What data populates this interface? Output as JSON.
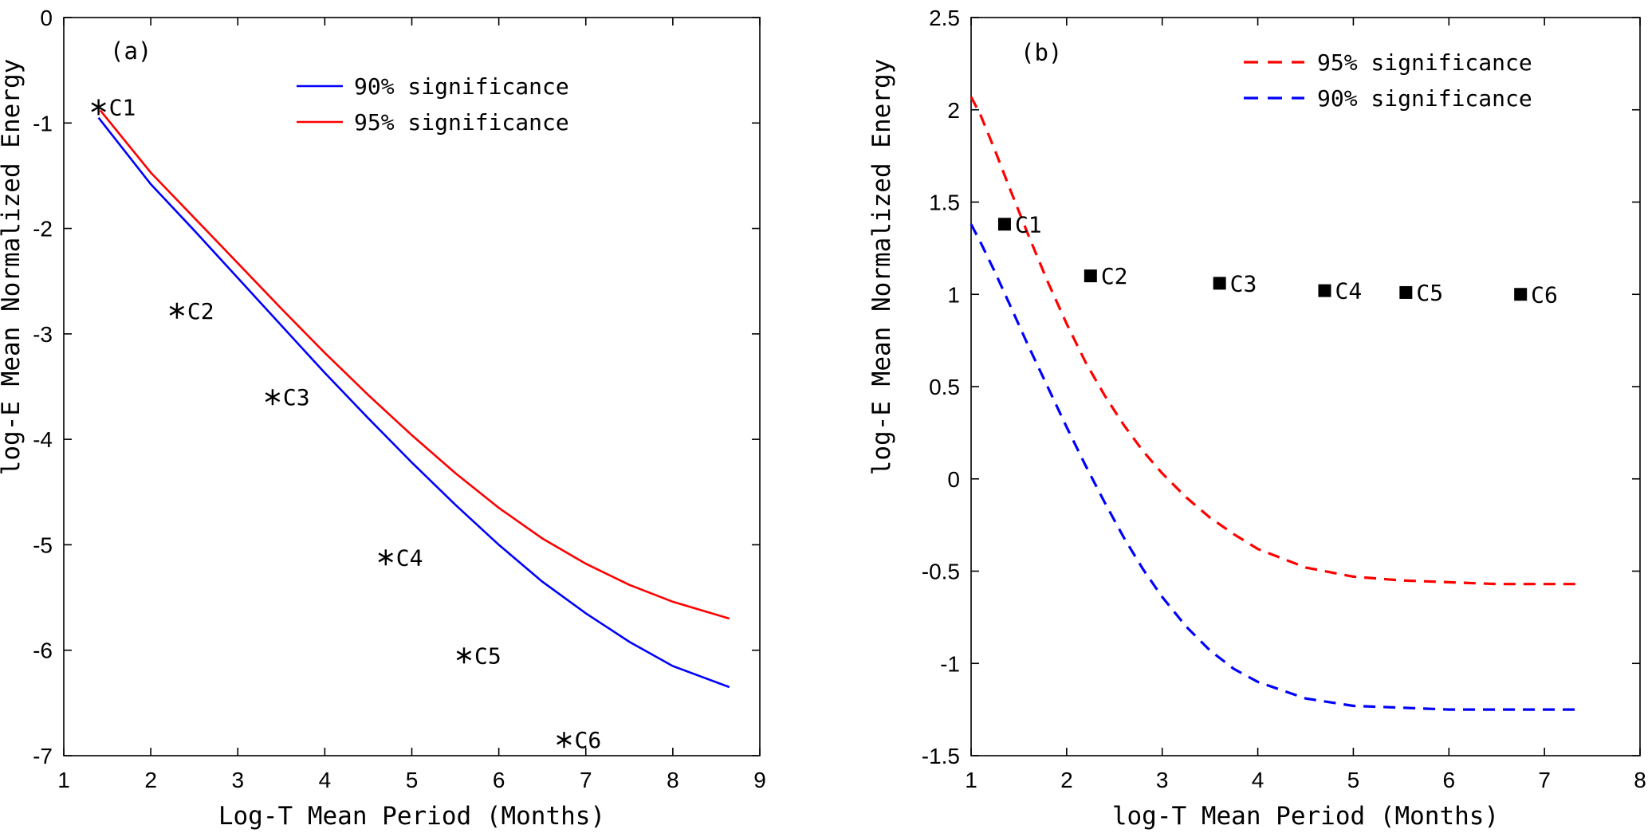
{
  "figure": {
    "background": "#ffffff",
    "description": "Two-panel significance chart, panels (a) and (b)"
  },
  "chart_data": [
    {
      "id": "a",
      "type": "line",
      "panel_label": "(a)",
      "xlabel": "Log-T Mean Period (Months)",
      "ylabel": "log-E Mean Normalized Energy",
      "xlim": [
        1,
        9
      ],
      "ylim": [
        -7,
        0
      ],
      "xticks": [
        1,
        2,
        3,
        4,
        5,
        6,
        7,
        8,
        9
      ],
      "yticks": [
        0,
        -1,
        -2,
        -3,
        -4,
        -5,
        -6,
        -7
      ],
      "grid": false,
      "legend_position": "upper-right-inside",
      "series": [
        {
          "name": "90% significance",
          "color": "#0000ff",
          "dashed": false,
          "x": [
            1.4,
            2.0,
            2.5,
            3.0,
            3.5,
            4.0,
            4.5,
            5.0,
            5.5,
            6.0,
            6.5,
            7.0,
            7.5,
            8.0,
            8.65
          ],
          "y": [
            -0.95,
            -1.58,
            -2.02,
            -2.47,
            -2.92,
            -3.37,
            -3.8,
            -4.22,
            -4.62,
            -5.0,
            -5.35,
            -5.65,
            -5.92,
            -6.15,
            -6.35
          ]
        },
        {
          "name": "95% significance",
          "color": "#ff0000",
          "dashed": false,
          "x": [
            1.42,
            2.0,
            2.5,
            3.0,
            3.5,
            4.0,
            4.5,
            5.0,
            5.5,
            6.0,
            6.5,
            7.0,
            7.5,
            8.0,
            8.65
          ],
          "y": [
            -0.88,
            -1.47,
            -1.9,
            -2.33,
            -2.76,
            -3.18,
            -3.58,
            -3.96,
            -4.32,
            -4.65,
            -4.94,
            -5.18,
            -5.38,
            -5.54,
            -5.7
          ]
        }
      ],
      "points": {
        "marker": "asterisk",
        "color": "#000000",
        "items": [
          {
            "label": "C1",
            "x": 1.4,
            "y": -0.85
          },
          {
            "label": "C2",
            "x": 2.3,
            "y": -2.78
          },
          {
            "label": "C3",
            "x": 3.4,
            "y": -3.6
          },
          {
            "label": "C4",
            "x": 4.7,
            "y": -5.12
          },
          {
            "label": "C5",
            "x": 5.6,
            "y": -6.05
          },
          {
            "label": "C6",
            "x": 6.75,
            "y": -6.85
          }
        ]
      },
      "legend": {
        "entries": [
          {
            "label": "90% significance",
            "color": "#0000ff",
            "dashed": false
          },
          {
            "label": "95% significance",
            "color": "#ff0000",
            "dashed": false
          }
        ]
      }
    },
    {
      "id": "b",
      "type": "line",
      "panel_label": "(b)",
      "xlabel": "log-T Mean Period (Months)",
      "ylabel": "log-E Mean Normalized Energy",
      "xlim": [
        1,
        8
      ],
      "ylim": [
        -1.5,
        2.5
      ],
      "xticks": [
        1,
        2,
        3,
        4,
        5,
        6,
        7,
        8
      ],
      "yticks": [
        2.5,
        2,
        1.5,
        1,
        0.5,
        0,
        -0.5,
        -1,
        -1.5
      ],
      "grid": false,
      "legend_position": "upper-right-inside",
      "series": [
        {
          "name": "95% significance",
          "color": "#ff0000",
          "dashed": true,
          "x": [
            1.0,
            1.1,
            1.25,
            1.4,
            1.6,
            1.8,
            2.0,
            2.2,
            2.4,
            2.6,
            2.8,
            3.0,
            3.25,
            3.5,
            3.75,
            4.0,
            4.5,
            5.0,
            5.5,
            6.0,
            6.5,
            7.0,
            7.35
          ],
          "y": [
            2.07,
            1.97,
            1.78,
            1.58,
            1.32,
            1.07,
            0.84,
            0.63,
            0.45,
            0.29,
            0.15,
            0.03,
            -0.1,
            -0.21,
            -0.3,
            -0.38,
            -0.48,
            -0.53,
            -0.55,
            -0.56,
            -0.57,
            -0.57,
            -0.57
          ]
        },
        {
          "name": "90% significance",
          "color": "#0000ff",
          "dashed": true,
          "x": [
            1.0,
            1.1,
            1.25,
            1.4,
            1.6,
            1.8,
            2.0,
            2.2,
            2.4,
            2.6,
            2.8,
            3.0,
            3.25,
            3.5,
            3.75,
            4.0,
            4.5,
            5.0,
            5.5,
            6.0,
            6.5,
            7.0,
            7.35
          ],
          "y": [
            1.38,
            1.28,
            1.12,
            0.95,
            0.72,
            0.5,
            0.28,
            0.07,
            -0.13,
            -0.32,
            -0.49,
            -0.64,
            -0.8,
            -0.93,
            -1.03,
            -1.1,
            -1.19,
            -1.23,
            -1.24,
            -1.25,
            -1.25,
            -1.25,
            -1.25
          ]
        }
      ],
      "points": {
        "marker": "square",
        "color": "#000000",
        "items": [
          {
            "label": "C1",
            "x": 1.35,
            "y": 1.38
          },
          {
            "label": "C2",
            "x": 2.25,
            "y": 1.1
          },
          {
            "label": "C3",
            "x": 3.6,
            "y": 1.06
          },
          {
            "label": "C4",
            "x": 4.7,
            "y": 1.02
          },
          {
            "label": "C5",
            "x": 5.55,
            "y": 1.01
          },
          {
            "label": "C6",
            "x": 6.75,
            "y": 1.0
          }
        ]
      },
      "legend": {
        "entries": [
          {
            "label": "95% significance",
            "color": "#ff0000",
            "dashed": true
          },
          {
            "label": "90% significance",
            "color": "#0000ff",
            "dashed": true
          }
        ]
      }
    }
  ]
}
